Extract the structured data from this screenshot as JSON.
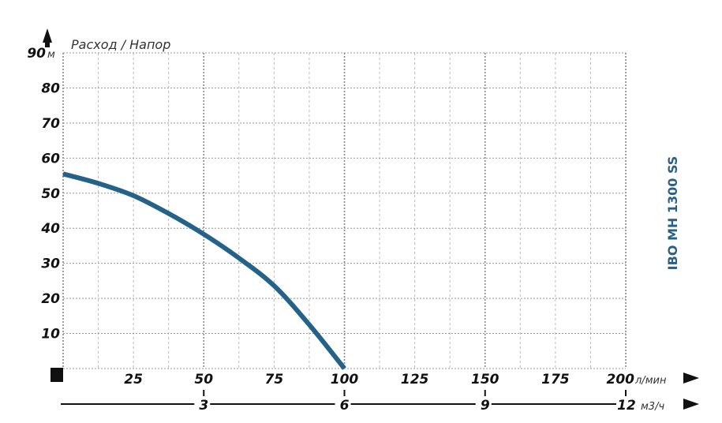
{
  "chart_data": {
    "type": "line",
    "title": "Расход / Напор",
    "side_label": "IBO MH 1300 SS",
    "y_unit": "м",
    "x_unit": "л/мин",
    "x2_unit": "м3/ч",
    "xlim": [
      0,
      200
    ],
    "ylim": [
      0,
      90
    ],
    "grid": true,
    "y_ticks": [
      "10",
      "20",
      "30",
      "40",
      "50",
      "60",
      "70",
      "80",
      "90"
    ],
    "x_ticks": [
      "25",
      "50",
      "75",
      "100",
      "125",
      "150",
      "175",
      "200"
    ],
    "x2_ticks": [
      "3",
      "6",
      "9",
      "12"
    ],
    "series": [
      {
        "color": "#24628a",
        "x": [
          0,
          12.5,
          25,
          37.5,
          50,
          62.5,
          75,
          87.5,
          100
        ],
        "y": [
          55.5,
          52.8,
          49.3,
          44.2,
          38.3,
          31.5,
          23.6,
          12.5,
          0
        ]
      }
    ]
  }
}
